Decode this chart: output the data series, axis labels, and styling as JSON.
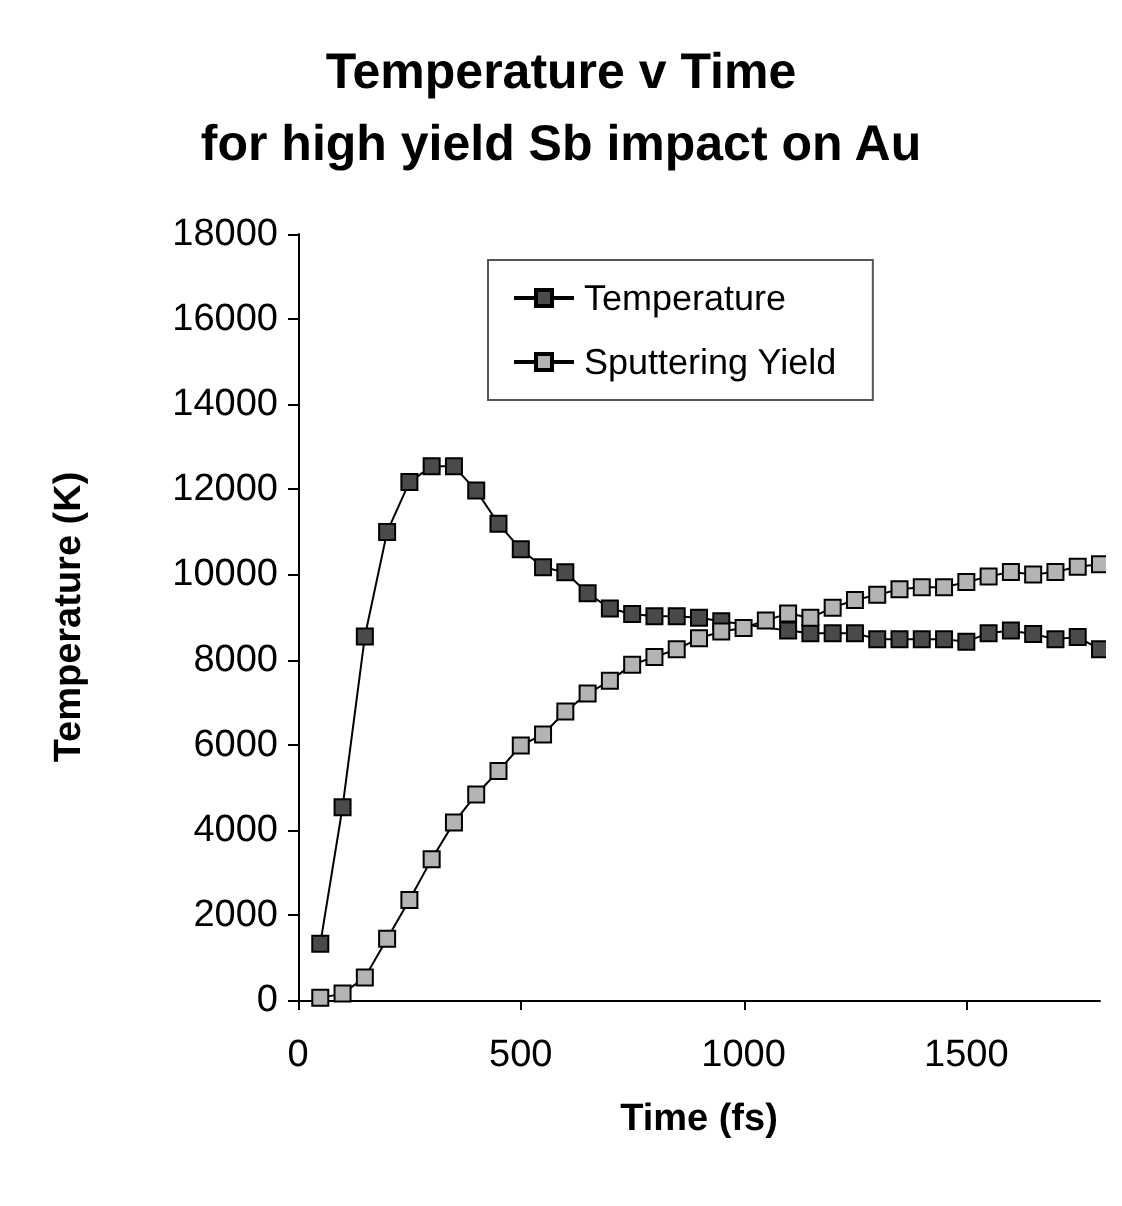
{
  "chart_data": {
    "type": "line",
    "title": "Temperature v Time\nfor high yield Sb impact on Au",
    "xlabel": "Time (fs)",
    "ylabel": "Temperature (K)",
    "x": [
      50,
      100,
      150,
      200,
      250,
      300,
      350,
      400,
      450,
      500,
      550,
      600,
      650,
      700,
      750,
      800,
      850,
      900,
      950,
      1000,
      1050,
      1100,
      1150,
      1200,
      1250,
      1300,
      1350,
      1400,
      1450,
      1500,
      1550,
      1600,
      1650,
      1700,
      1750,
      1800
    ],
    "series": [
      {
        "name": "Temperature",
        "color": "#4a4a4a",
        "values": [
          1320,
          4530,
          8540,
          11000,
          12170,
          12540,
          12540,
          11970,
          11190,
          10590,
          10170,
          10050,
          9560,
          9200,
          9070,
          9020,
          9020,
          8980,
          8900,
          null,
          null,
          8680,
          8620,
          8620,
          8620,
          8480,
          8480,
          8480,
          8480,
          8420,
          8620,
          8680,
          8600,
          8480,
          8530,
          8240
        ]
      },
      {
        "name": "Sputtering Yield",
        "color": "#b4b4b4",
        "values": [
          50,
          150,
          530,
          1440,
          2350,
          3310,
          4170,
          4830,
          5380,
          5980,
          6240,
          6780,
          7200,
          7500,
          7880,
          8060,
          8240,
          8500,
          8660,
          8740,
          8920,
          9080,
          8980,
          9220,
          9400,
          9520,
          9650,
          9700,
          9700,
          9820,
          9950,
          10060,
          10000,
          10060,
          10180,
          10240
        ]
      }
    ],
    "xlim": [
      0,
      1800
    ],
    "xticks": [
      0,
      500,
      1000,
      1500
    ],
    "ylim": [
      0,
      18000
    ],
    "yticks": [
      0,
      2000,
      4000,
      6000,
      8000,
      10000,
      12000,
      14000,
      16000,
      18000
    ],
    "grid": false,
    "legend": "top",
    "marker": "square",
    "line_style": "solid"
  }
}
